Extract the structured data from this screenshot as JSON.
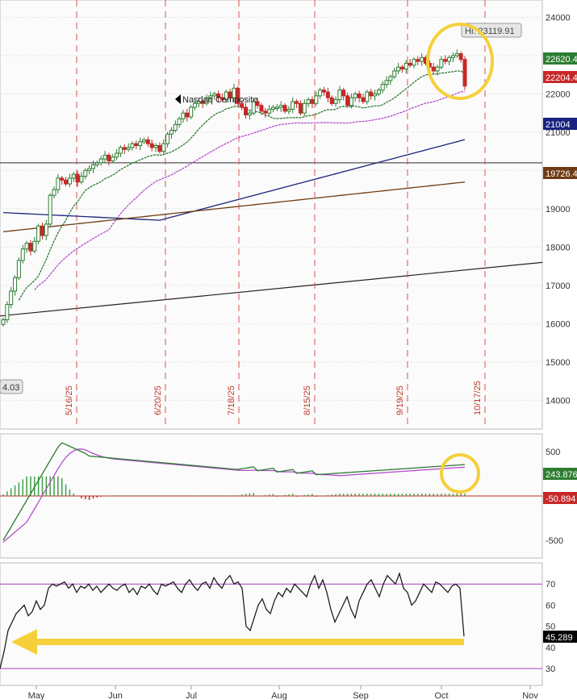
{
  "chart_data": [
    {
      "type": "candlestick",
      "name": "Nasdaq Composite",
      "label": "Nasdaq Composite",
      "ylim": [
        13500,
        24200
      ],
      "y_ticks": [
        14000,
        15000,
        16000,
        17000,
        18000,
        19000,
        20000,
        21000,
        22000,
        23000,
        24000
      ],
      "last_value_tags": [
        {
          "text": "22620.4",
          "color": "#2e7d32"
        },
        {
          "text": "22204.4",
          "color": "#c62828"
        },
        {
          "text": "21004",
          "color": "#1a237e"
        },
        {
          "text": "19726.4",
          "color": "#6d3b14"
        }
      ],
      "high_label": "Hi: 23119.91",
      "left_tag": "4.03",
      "vertical_dates": [
        "5/16/25",
        "6/20/25",
        "7/18/25",
        "8/15/25",
        "9/19/25",
        "10/17/25"
      ],
      "horizontal_level": 20200,
      "trend_line": {
        "start": 16200,
        "end": 17600
      },
      "series_closes": [
        16100,
        16500,
        16850,
        17200,
        17650,
        17950,
        18100,
        17900,
        18150,
        18550,
        18300,
        18600,
        19350,
        19500,
        19800,
        19750,
        19650,
        19800,
        19900,
        19700,
        19850,
        20000,
        20050,
        20150,
        20200,
        20300,
        20400,
        20250,
        20350,
        20450,
        20600,
        20550,
        20600,
        20700,
        20650,
        20750,
        20800,
        20700,
        20600,
        20650,
        20500,
        20700,
        20950,
        21050,
        21200,
        21350,
        21500,
        21400,
        21650,
        21750,
        21800,
        21750,
        21900,
        21950,
        22000,
        21900,
        21850,
        22050,
        21900,
        22150,
        21750,
        21650,
        21450,
        21500,
        21800,
        21700,
        21550,
        21500,
        21600,
        21650,
        21650,
        21700,
        21550,
        21600,
        21800,
        21750,
        21500,
        21750,
        21850,
        21750,
        21950,
        22100,
        22050,
        21900,
        21750,
        21850,
        22100,
        21950,
        21700,
        21900,
        22000,
        21900,
        21800,
        22050,
        21950,
        22000,
        22100,
        22250,
        22350,
        22450,
        22600,
        22700,
        22650,
        22800,
        22750,
        22900,
        22850,
        22950,
        22800,
        22700,
        22600,
        22700,
        22900,
        22850,
        22950,
        23000,
        23050,
        22900,
        22204
      ]
    },
    {
      "type": "line",
      "name": "MACD",
      "ylim": [
        -700,
        700
      ],
      "y_ticks": [
        -500,
        500
      ],
      "last_value_tags": [
        {
          "text": "243.876",
          "color": "#2e7d32"
        },
        {
          "text": "-50.894",
          "color": "#c62828"
        }
      ]
    },
    {
      "type": "line",
      "name": "RSI",
      "ylim": [
        22,
        80
      ],
      "y_ticks": [
        30,
        40,
        50,
        60,
        70
      ],
      "last_value_tags": [
        {
          "text": "45.289",
          "color": "#000000"
        }
      ],
      "values": [
        30,
        38,
        48,
        52,
        56,
        58,
        60,
        55,
        57,
        62,
        58,
        60,
        68,
        70,
        69,
        70,
        71,
        68,
        70,
        66,
        69,
        68,
        70,
        67,
        69,
        66,
        68,
        70,
        68,
        67,
        69,
        70,
        66,
        68,
        65,
        69,
        68,
        70,
        67,
        65,
        70,
        69,
        70,
        71,
        68,
        66,
        70,
        72,
        69,
        67,
        70,
        71,
        68,
        73,
        70,
        68,
        72,
        74,
        70,
        71,
        68,
        50,
        48,
        54,
        60,
        63,
        58,
        56,
        62,
        66,
        64,
        68,
        66,
        70,
        68,
        66,
        64,
        70,
        74,
        68,
        72,
        66,
        58,
        52,
        56,
        60,
        64,
        58,
        54,
        62,
        66,
        70,
        72,
        68,
        64,
        70,
        74,
        72,
        70,
        75,
        68,
        66,
        60,
        62,
        66,
        70,
        68,
        66,
        71,
        70,
        68,
        66,
        69,
        70,
        68,
        45.3
      ]
    }
  ],
  "x_axis": {
    "months": [
      "May",
      "Jun",
      "Jul",
      "Aug",
      "Sep",
      "Oct",
      "Nov"
    ]
  }
}
